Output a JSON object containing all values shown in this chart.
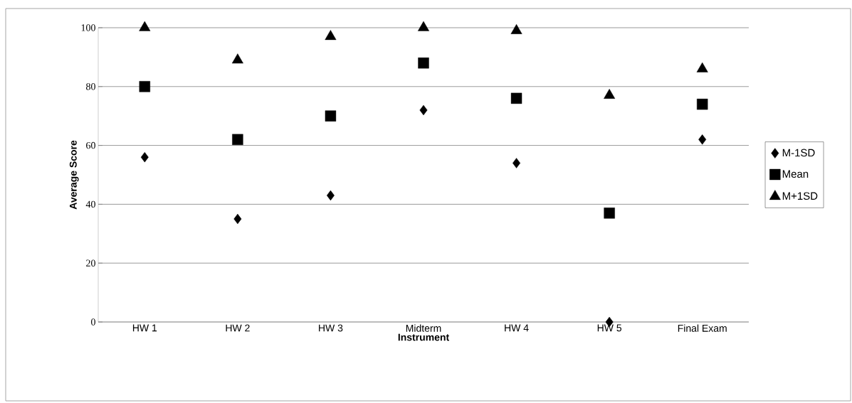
{
  "chart_data": {
    "type": "scatter",
    "xlabel": "Instrument",
    "ylabel": "Average Score",
    "categories": [
      "HW 1",
      "HW 2",
      "HW 3",
      "Midterm",
      "HW 4",
      "HW 5",
      "Final Exam"
    ],
    "series": [
      {
        "name": "M-1SD",
        "color": "#000000",
        "marker": "diamond",
        "values": [
          56,
          35,
          43,
          72,
          54,
          0,
          62
        ]
      },
      {
        "name": "Mean",
        "color": "#000000",
        "marker": "square",
        "values": [
          80,
          62,
          70,
          88,
          76,
          37,
          74
        ]
      },
      {
        "name": "M+1SD",
        "color": "#000000",
        "marker": "triangle",
        "values": [
          100,
          89,
          97,
          100,
          99,
          77,
          86
        ]
      }
    ],
    "ylim": [
      0,
      100
    ],
    "yticks": [
      0,
      20,
      40,
      60,
      80,
      100
    ],
    "grid": "y",
    "legend": "right"
  }
}
